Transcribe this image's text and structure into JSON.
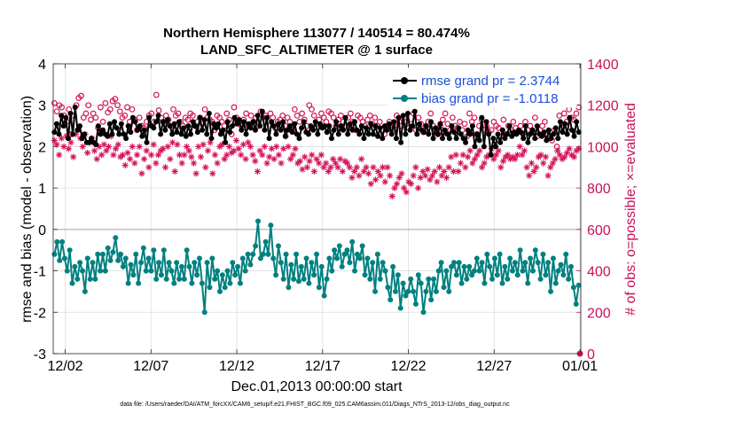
{
  "chart_data": {
    "type": "line",
    "title_line1": "Northern Hemisphere 113077 / 140514 = 80.474%",
    "title_line2": "LAND_SFC_ALTIMETER @ 1 surface",
    "ylabel_left": "rmse and bias (model - observation)",
    "ylabel_right": "# of obs: o=possible; ×=evaluated",
    "xlabel": "Dec.01,2013 00:00:00 start",
    "footnote": "data file: /Users/raeder/DAI/ATM_forcXX/CAM6_setup/f.e21.FHIST_BGC.f09_025.CAM6assim.011/Diags_NTrS_2013-12/obs_diag_output.nc",
    "ylim_left": [
      -3,
      4
    ],
    "yticks_left": [
      -3,
      -2,
      -1,
      0,
      1,
      2,
      3,
      4
    ],
    "ylim_right": [
      0,
      1400
    ],
    "yticks_right": [
      0,
      200,
      400,
      600,
      800,
      1000,
      1200,
      1400
    ],
    "xlim_days": [
      0.3,
      31.05
    ],
    "xticks": [
      {
        "day": 1,
        "label": "12/02"
      },
      {
        "day": 6,
        "label": "12/07"
      },
      {
        "day": 11,
        "label": "12/12"
      },
      {
        "day": 16,
        "label": "12/17"
      },
      {
        "day": 21,
        "label": "12/22"
      },
      {
        "day": 26,
        "label": "12/27"
      },
      {
        "day": 31,
        "label": "01/01"
      }
    ],
    "grid": true,
    "legend_position": "top-right",
    "series": [
      {
        "name": "rmse grand pr = 2.3744",
        "color": "#000000",
        "axis": "left",
        "marker": "filled-circle",
        "values": [
          2.35,
          2.55,
          2.3,
          2.75,
          2.5,
          2.7,
          2.2,
          2.8,
          2.3,
          2.95,
          2.4,
          2.5,
          2.2,
          2.3,
          2.1,
          2.1,
          2.2,
          2.1,
          2.05,
          2.5,
          2.3,
          2.4,
          2.3,
          2.25,
          2.55,
          2.3,
          2.6,
          2.45,
          2.3,
          2.55,
          2.3,
          2.2,
          2.5,
          2.35,
          2.7,
          2.6,
          2.4,
          2.5,
          2.25,
          2.4,
          2.1,
          2.7,
          2.5,
          2.45,
          2.6,
          2.75,
          2.3,
          2.6,
          2.4,
          2.65,
          2.5,
          2.3,
          2.55,
          2.35,
          2.6,
          2.3,
          2.45,
          2.25,
          2.5,
          2.3,
          2.6,
          2.5,
          2.35,
          2.7,
          2.4,
          2.65,
          2.3,
          2.8,
          2.2,
          2.55,
          2.45,
          2.55,
          2.3,
          2.4,
          2.1,
          2.6,
          2.35,
          2.5,
          2.7,
          2.55,
          2.65,
          2.4,
          2.6,
          2.3,
          2.55,
          2.45,
          2.6,
          2.4,
          2.75,
          2.5,
          2.85,
          2.4,
          2.7,
          2.2,
          2.6,
          2.5,
          2.3,
          2.55,
          2.4,
          2.6,
          2.25,
          2.4,
          2.5,
          2.35,
          2.55,
          2.3,
          2.2,
          2.45,
          2.6,
          2.35,
          2.3,
          2.5,
          2.4,
          2.6,
          2.3,
          2.55,
          2.45,
          2.5,
          2.35,
          2.5,
          2.2,
          2.4,
          2.6,
          2.3,
          2.5,
          2.4,
          2.7,
          2.3,
          2.55,
          2.4,
          2.6,
          2.4,
          2.3,
          2.5,
          2.2,
          2.45,
          2.3,
          2.55,
          2.3,
          2.5,
          2.25,
          2.45,
          2.2,
          2.5,
          2.4,
          2.55,
          2.3,
          2.6,
          2.2,
          2.7,
          2.1,
          2.75,
          2.3,
          2.8,
          2.4,
          2.5,
          2.85,
          2.3,
          2.55,
          2.4,
          2.35,
          2.5,
          2.3,
          2.6,
          2.2,
          2.45,
          2.3,
          2.55,
          2.2,
          2.4,
          2.3,
          2.2,
          2.5,
          2.35,
          2.2,
          2.45,
          2.3,
          2.2,
          2.1,
          2.4,
          2.3,
          2.5,
          2.0,
          2.3,
          2.15,
          2.7,
          2.0,
          2.6,
          2.3,
          1.8,
          2.2,
          2.0,
          2.3,
          2.1,
          2.4,
          2.2,
          2.3,
          2.5,
          2.25,
          2.35,
          2.3,
          2.4,
          2.35,
          2.2,
          2.5,
          2.1,
          2.3,
          2.4,
          2.2,
          2.5,
          2.3,
          2.25,
          2.35,
          2.15,
          2.4,
          2.2,
          2.3,
          2.45,
          2.2,
          2.6,
          2.35,
          2.55,
          2.3,
          2.7,
          2.4,
          2.25,
          2.6,
          2.35
        ]
      },
      {
        "name": "bias grand pr = -1.0118",
        "color": "#008080",
        "axis": "left",
        "marker": "filled-circle",
        "values": [
          -0.6,
          -0.3,
          -0.75,
          -0.3,
          -0.7,
          -1.0,
          -0.5,
          -1.3,
          -0.9,
          -1.2,
          -0.8,
          -1.0,
          -1.5,
          -0.7,
          -1.2,
          -0.8,
          -1.2,
          -0.6,
          -1.0,
          -0.6,
          -1.0,
          -0.45,
          -0.75,
          -0.55,
          -0.2,
          -0.75,
          -0.6,
          -0.9,
          -0.7,
          -1.3,
          -0.85,
          -1.1,
          -0.6,
          -1.3,
          -0.8,
          -0.45,
          -1.0,
          -0.7,
          -1.0,
          -0.5,
          -1.2,
          -0.8,
          -1.1,
          -0.5,
          -1.2,
          -0.8,
          -1.0,
          -1.3,
          -0.8,
          -1.2,
          -0.9,
          -1.2,
          -0.5,
          -0.9,
          -1.3,
          -0.8,
          -1.1,
          -0.7,
          -1.3,
          -2.0,
          -0.8,
          -1.4,
          -0.7,
          -1.2,
          -1.0,
          -1.5,
          -1.1,
          -1.4,
          -1.0,
          -1.3,
          -0.8,
          -1.1,
          -0.9,
          -1.3,
          -0.7,
          -1.0,
          -0.6,
          -0.85,
          -0.6,
          -0.4,
          0.2,
          -0.7,
          -0.6,
          -0.3,
          -0.6,
          0.1,
          -0.7,
          -1.1,
          -0.4,
          -0.8,
          -1.2,
          -0.6,
          -1.4,
          -0.85,
          -1.2,
          -0.6,
          -1.25,
          -0.9,
          -1.2,
          -0.7,
          -1.3,
          -0.8,
          -1.1,
          -0.6,
          -1.4,
          -0.9,
          -1.6,
          -1.2,
          -0.7,
          -1.0,
          -0.5,
          -0.7,
          -0.4,
          -0.9,
          -0.6,
          -0.5,
          -0.8,
          -0.3,
          -1.0,
          -0.6,
          -0.7,
          -0.4,
          -1.1,
          -0.7,
          -1.2,
          -0.8,
          -1.5,
          -0.6,
          -1.2,
          -0.8,
          -1.0,
          -1.4,
          -1.7,
          -0.9,
          -1.5,
          -1.1,
          -1.9,
          -1.3,
          -1.6,
          -1.5,
          -1.2,
          -1.5,
          -1.8,
          -1.1,
          -1.3,
          -2.0,
          -1.5,
          -1.2,
          -1.7,
          -1.2,
          -1.5,
          -1.0,
          -0.8,
          -1.4,
          -1.0,
          -1.5,
          -0.9,
          -0.8,
          -1.1,
          -0.8,
          -1.3,
          -0.9,
          -1.2,
          -0.9,
          -1.1,
          -1.0,
          -0.7,
          -1.0,
          -0.8,
          -1.3,
          -0.6,
          -0.9,
          -1.2,
          -0.7,
          -1.1,
          -0.6,
          -1.3,
          -0.9,
          -1.2,
          -0.7,
          -1.0,
          -0.8,
          -1.1,
          -0.5,
          -1.0,
          -0.8,
          -1.3,
          -0.7,
          -1.0,
          -0.5,
          -0.8,
          -1.2,
          -0.6,
          -1.1,
          -0.8,
          -1.5,
          -0.7,
          -1.3,
          -1.0,
          -0.85,
          -1.1,
          -0.6,
          -1.2,
          -0.9,
          -1.4,
          -1.8,
          -1.35
        ]
      },
      {
        "name": "possible",
        "color": "#d4145a",
        "axis": "right",
        "marker": "open-circle",
        "values": [
          1210,
          1170,
          1200,
          1190,
          1150,
          1120,
          1180,
          1060,
          1150,
          1200,
          1235,
          1245,
          1140,
          1160,
          1200,
          1130,
          1160,
          1140,
          1090,
          1190,
          1120,
          1210,
          1165,
          1180,
          1220,
          1230,
          1200,
          1170,
          1140,
          1150,
          1190,
          1120,
          1180,
          1130,
          1080,
          1140,
          1100,
          1090,
          1120,
          1150,
          1160,
          1120,
          1250,
          1175,
          1140,
          1120,
          1150,
          1130,
          1100,
          1180,
          1150,
          1160,
          1120,
          1100,
          1140,
          1130,
          1160,
          1150,
          1100,
          1120,
          1140,
          1110,
          1180,
          1140,
          1130,
          1120,
          1080,
          1150,
          1140,
          1120,
          1100,
          1160,
          1130,
          1060,
          1190,
          1140,
          1120,
          1100,
          1130,
          1160,
          1100,
          1150,
          1120,
          1140,
          1100,
          1170,
          1140,
          1150,
          1120,
          1160,
          1140,
          1090,
          1120,
          1130,
          1150,
          1100,
          1140,
          1120,
          1080,
          1180,
          1150,
          1120,
          1160,
          1130,
          1100,
          1200,
          1180,
          1150,
          1110,
          1130,
          1160,
          1140,
          1120,
          1170,
          1160,
          1140,
          1100,
          1130,
          1150,
          1120,
          1100,
          1140,
          1160,
          1120,
          1080,
          1150,
          1140,
          1120,
          1100,
          1130,
          1150,
          1110,
          1140,
          1100,
          1120,
          1080,
          1060,
          1100,
          1120,
          1080,
          1100,
          1150,
          1120,
          1100,
          1140,
          1120,
          1090,
          1110,
          1160,
          1080,
          1140,
          1110,
          1070,
          1100,
          1120,
          1160,
          1100,
          1080,
          1060,
          1100,
          1130,
          1160,
          1110,
          1080,
          1140,
          1100,
          1090,
          1120,
          1080,
          1110,
          1050,
          1160,
          1120,
          1140,
          1060,
          1100,
          1130,
          1080,
          1100,
          1070,
          1080,
          1120,
          1100,
          1090,
          1050,
          1130,
          1060,
          1100,
          1080,
          1120,
          1090,
          1070,
          1100,
          1060,
          1120,
          1080,
          1100,
          1070,
          1140,
          1050,
          1080,
          1100,
          1120,
          1060,
          1050,
          1030,
          1080,
          1000,
          1150,
          1090,
          1160,
          1120,
          1180,
          1140,
          1130,
          1160,
          1190
        ]
      },
      {
        "name": "evaluated",
        "color": "#d4145a",
        "axis": "right",
        "marker": "asterisk",
        "values": [
          1030,
          1010,
          960,
          1040,
          1000,
          1050,
          990,
          1020,
          950,
          1060,
          1080,
          1040,
          1000,
          1060,
          970,
          1020,
          1040,
          980,
          940,
          1000,
          960,
          1010,
          980,
          1000,
          1050,
          960,
          990,
          1010,
          950,
          960,
          910,
          970,
          940,
          1000,
          920,
          960,
          1000,
          870,
          940,
          980,
          900,
          960,
          1010,
          920,
          960,
          980,
          990,
          900,
          1000,
          940,
          1020,
          880,
          1010,
          960,
          920,
          960,
          1000,
          980,
          950,
          920,
          870,
          1000,
          950,
          1010,
          900,
          980,
          1020,
          870,
          960,
          920,
          1000,
          1010,
          940,
          960,
          1000,
          970,
          980,
          1030,
          990,
          960,
          1010,
          940,
          1020,
          1000,
          960,
          930,
          880,
          980,
          960,
          1000,
          920,
          950,
          990,
          940,
          1000,
          960,
          920,
          990,
          1050,
          1000,
          940,
          960,
          990,
          920,
          930,
          890,
          950,
          900,
          930,
          960,
          880,
          940,
          920,
          960,
          900,
          920,
          880,
          900,
          940,
          920,
          900,
          940,
          880,
          930,
          920,
          900,
          850,
          880,
          900,
          860,
          940,
          880,
          900,
          870,
          820,
          900,
          840,
          880,
          860,
          900,
          830,
          900,
          860,
          760,
          800,
          820,
          850,
          870,
          800,
          780,
          830,
          820,
          860,
          900,
          800,
          850,
          880,
          860,
          890,
          840,
          860,
          880,
          830,
          900,
          860,
          880,
          850,
          900,
          950,
          880,
          960,
          880,
          920,
          960,
          900,
          950,
          980,
          920,
          940,
          960,
          980,
          900,
          920,
          950,
          960,
          990,
          940,
          960,
          980,
          900,
          930,
          950,
          960,
          940,
          950,
          940,
          960,
          1000,
          960,
          980,
          900,
          860,
          920,
          880,
          900,
          950,
          960,
          920,
          950,
          860,
          900,
          920,
          940,
          980,
          960,
          940,
          950,
          970,
          990,
          960,
          950,
          980,
          990
        ]
      }
    ]
  }
}
